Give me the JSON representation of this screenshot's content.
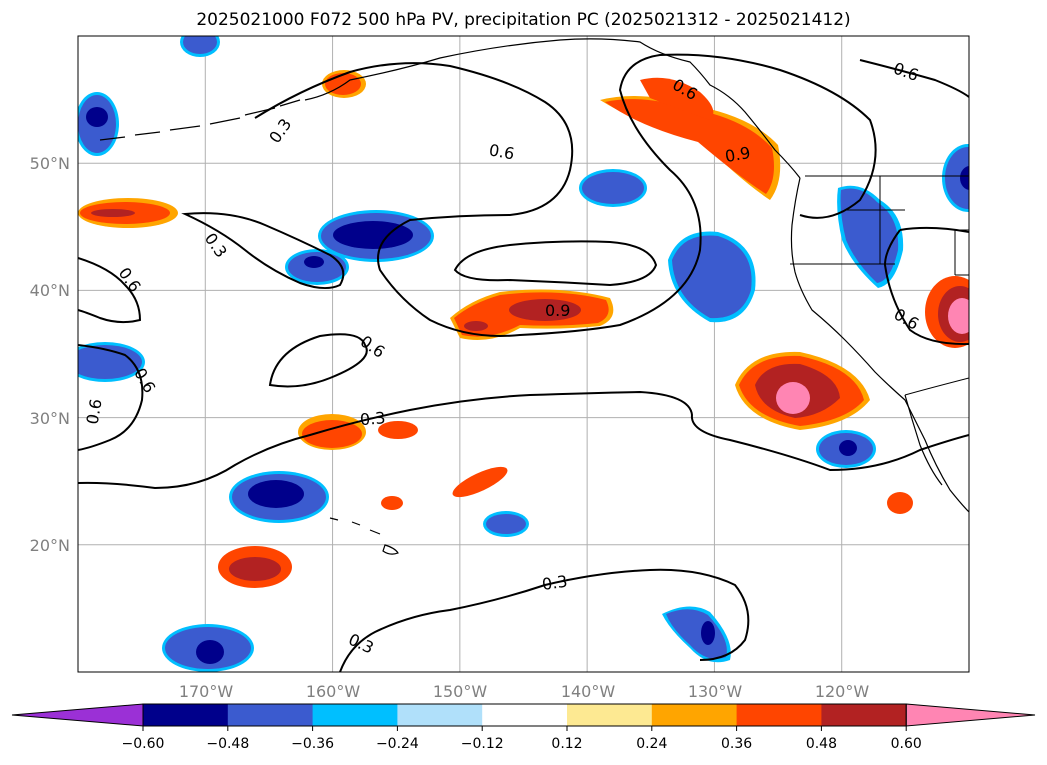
{
  "title": "2025021000 F072 500 hPa PV, precipitation PC (2025021312 - 2025021412)",
  "map": {
    "projection": "PlateCarree",
    "lon_range": [
      -180,
      -110
    ],
    "lat_range": [
      10,
      60
    ],
    "lat_labels": [
      "20°N",
      "30°N",
      "40°N",
      "50°N"
    ],
    "lon_labels": [
      "170°W",
      "160°W",
      "150°W",
      "140°W",
      "130°W",
      "120°W"
    ],
    "gridlines": true,
    "contour_field": "500 hPa PV",
    "contour_levels_labeled": [
      "0.3",
      "0.6",
      "0.9"
    ],
    "shaded_field": "precipitation PC"
  },
  "colorbar": {
    "orientation": "horizontal",
    "extend": "both",
    "ticks": [
      "−0.60",
      "−0.48",
      "−0.36",
      "−0.24",
      "−0.12",
      "0.12",
      "0.24",
      "0.36",
      "0.48",
      "0.60"
    ],
    "colors": [
      "#9b30d6",
      "#00008b",
      "#3b5bcf",
      "#00bfff",
      "#b0e0fa",
      "#ffffff",
      "#fde992",
      "#ffa500",
      "#ff4500",
      "#b22222",
      "#ff85b3"
    ]
  },
  "contour_labels": [
    "0.3",
    "0.6",
    "0.6",
    "0.3",
    "0.6",
    "0.6",
    "0.6",
    "0.9",
    "0.6",
    "0.6",
    "0.9",
    "0.6",
    "0.3",
    "0.3",
    "0.3",
    "0.6"
  ]
}
